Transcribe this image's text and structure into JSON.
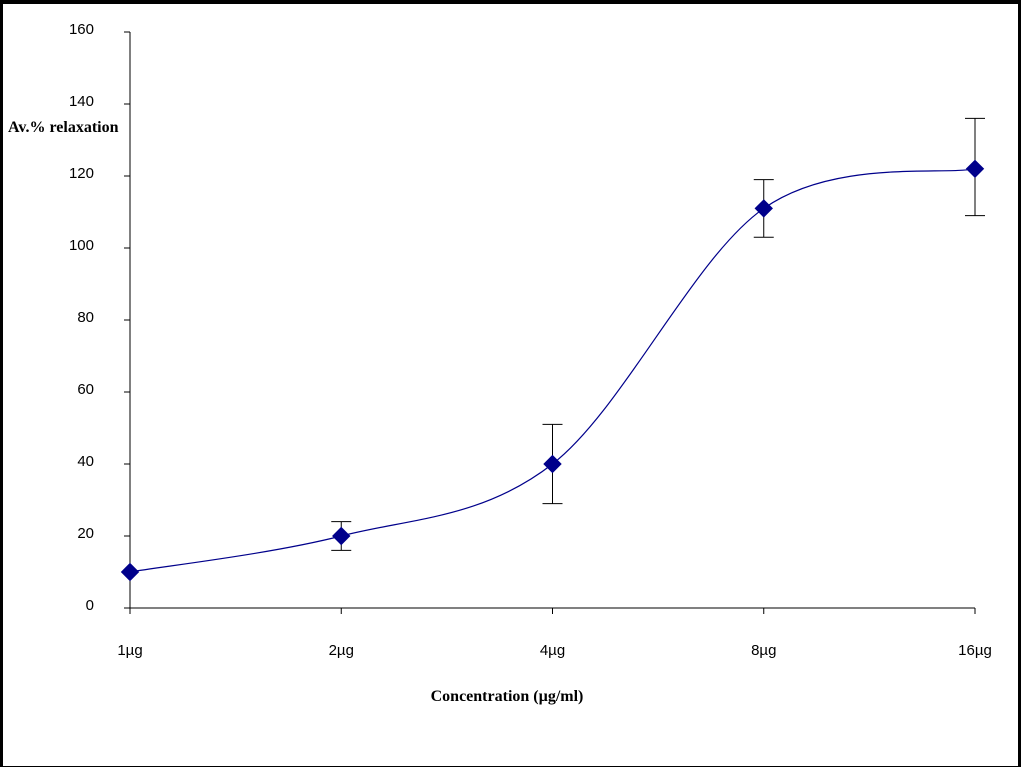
{
  "chart_data": {
    "type": "line",
    "ylabel": "Av.% relaxation",
    "xlabel": "Concentration (µg/ml)",
    "categories": [
      "1µg",
      "2µg",
      "4µg",
      "8µg",
      "16µg"
    ],
    "series": [
      {
        "values": [
          10,
          20,
          40,
          111,
          122
        ],
        "error_plus": [
          0,
          4,
          11,
          8,
          14
        ],
        "error_minus": [
          0,
          4,
          11,
          8,
          13
        ],
        "color": "#00008b"
      }
    ],
    "ylim": [
      0,
      160
    ],
    "yticks": [
      0,
      20,
      40,
      60,
      80,
      100,
      120,
      140,
      160
    ],
    "grid": false,
    "smooth": true
  }
}
